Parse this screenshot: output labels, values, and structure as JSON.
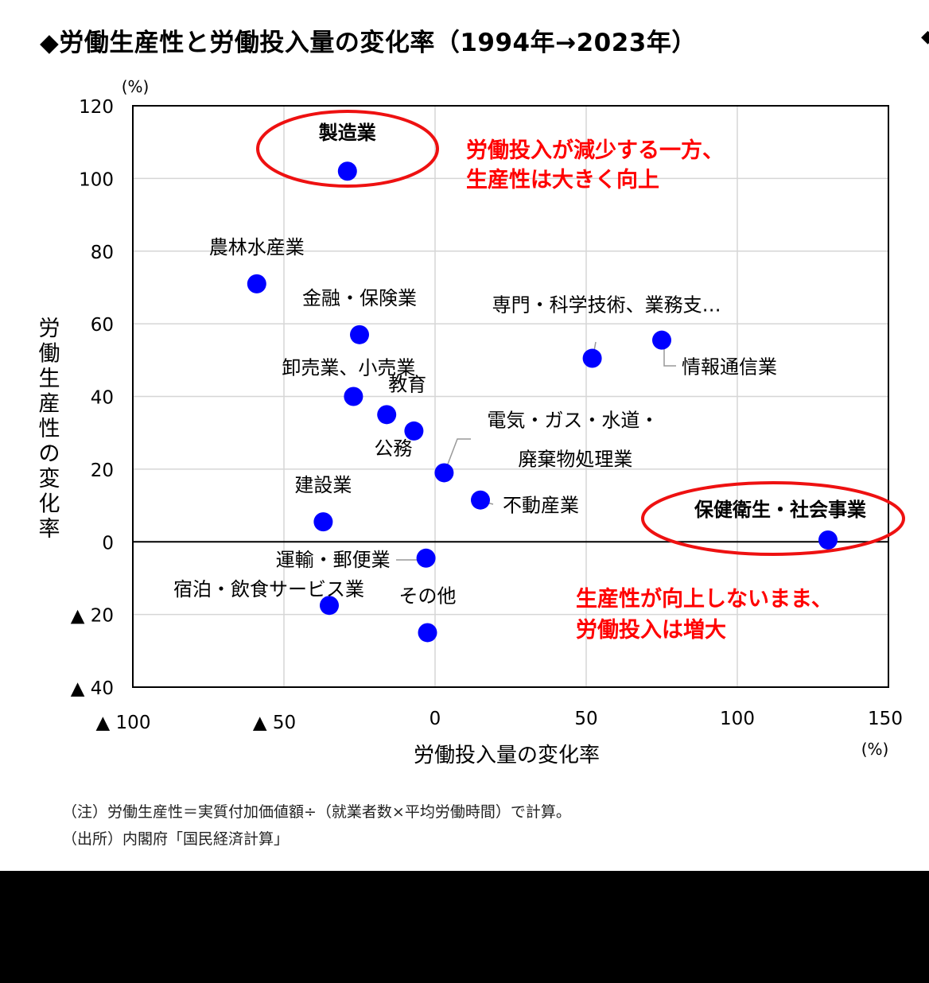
{
  "header": {
    "title": "◆労働生産性と労働投入量の変化率（1994年→2023年）",
    "edge_mark": "◆"
  },
  "chart_data": {
    "type": "scatter",
    "xlabel": "労働投入量の変化率",
    "ylabel": "労働生産性の変化率",
    "x_unit": "(%)",
    "y_unit": "(%)",
    "xlim": [
      -100,
      150
    ],
    "ylim": [
      -40,
      120
    ],
    "x_ticks": [
      -100,
      -50,
      0,
      50,
      100,
      150
    ],
    "y_ticks": [
      -40,
      -20,
      0,
      20,
      40,
      60,
      80,
      100,
      120
    ],
    "x_tick_labels": [
      "▲ 100",
      "▲ 50",
      "0",
      "50",
      "100",
      "150"
    ],
    "y_tick_labels": [
      "▲ 40",
      "▲ 20",
      "0",
      "20",
      "40",
      "60",
      "80",
      "100",
      "120"
    ],
    "grid": true,
    "point_color": "#0000ff",
    "points": [
      {
        "label": "製造業",
        "x": -29,
        "y": 102,
        "bold": true
      },
      {
        "label": "農林水産業",
        "x": -59,
        "y": 71
      },
      {
        "label": "金融・保険業",
        "x": -25,
        "y": 57
      },
      {
        "label": "卸売業、小売業",
        "x": -27,
        "y": 40
      },
      {
        "label": "教育",
        "x": -16,
        "y": 35
      },
      {
        "label": "公務",
        "x": -7,
        "y": 30.5
      },
      {
        "label": "電気・ガス・水道・",
        "label2": "廃棄物処理業",
        "x": 3,
        "y": 19
      },
      {
        "label": "建設業",
        "x": -37,
        "y": 5.5
      },
      {
        "label": "不動産業",
        "x": 15,
        "y": 11.5
      },
      {
        "label": "専門・科学技術、業務支…",
        "x": 52,
        "y": 50.5
      },
      {
        "label": "情報通信業",
        "x": 75,
        "y": 55.5
      },
      {
        "label": "保健衛生・社会事業",
        "x": 130,
        "y": 0.5,
        "bold": true
      },
      {
        "label": "運輸・郵便業",
        "x": -3,
        "y": -4.5
      },
      {
        "label": "宿泊・飲食サービス業",
        "x": -35,
        "y": -17.5
      },
      {
        "label": "その他",
        "x": -2.5,
        "y": -25
      }
    ],
    "annotations": [
      {
        "lines": [
          "労働投入が減少する一方、",
          "生産性は大きく向上"
        ],
        "color": "#ff0000"
      },
      {
        "lines": [
          "生産性が向上しないまま、",
          "労働投入は増大"
        ],
        "color": "#ff0000"
      }
    ],
    "highlight_color": "#ee1111"
  },
  "notes": {
    "note": "（注）労働生産性＝実質付加価値額÷（就業者数×平均労働時間）で計算。",
    "source": "（出所）内閣府「国民経済計算」"
  }
}
